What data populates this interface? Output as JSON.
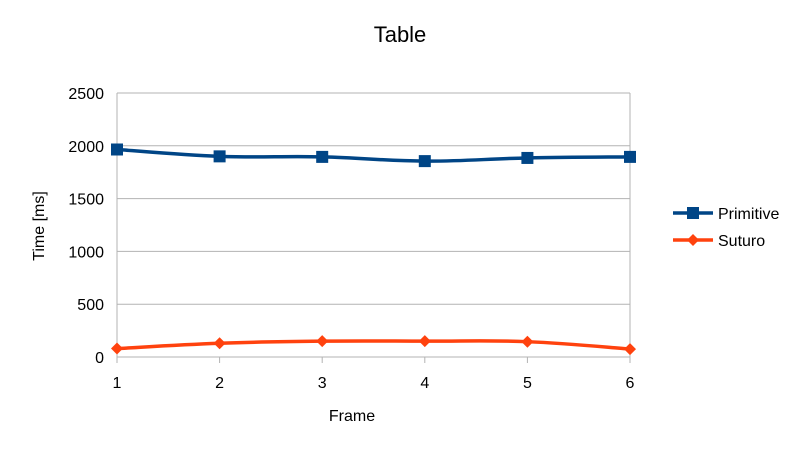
{
  "chart_data": {
    "type": "line",
    "title": "Table",
    "xlabel": "Frame",
    "ylabel": "Time [ms]",
    "x": [
      1,
      2,
      3,
      4,
      5,
      6
    ],
    "ylim": [
      0,
      2500
    ],
    "yticks": [
      0,
      500,
      1000,
      1500,
      2000,
      2500
    ],
    "grid": true,
    "legend_position": "right",
    "series": [
      {
        "name": "Primitive",
        "color": "#004586",
        "marker": "square",
        "values": [
          1965,
          1900,
          1895,
          1855,
          1885,
          1895
        ]
      },
      {
        "name": "Suturo",
        "color": "#ff420e",
        "marker": "diamond",
        "values": [
          80,
          130,
          150,
          150,
          145,
          75
        ]
      }
    ]
  }
}
